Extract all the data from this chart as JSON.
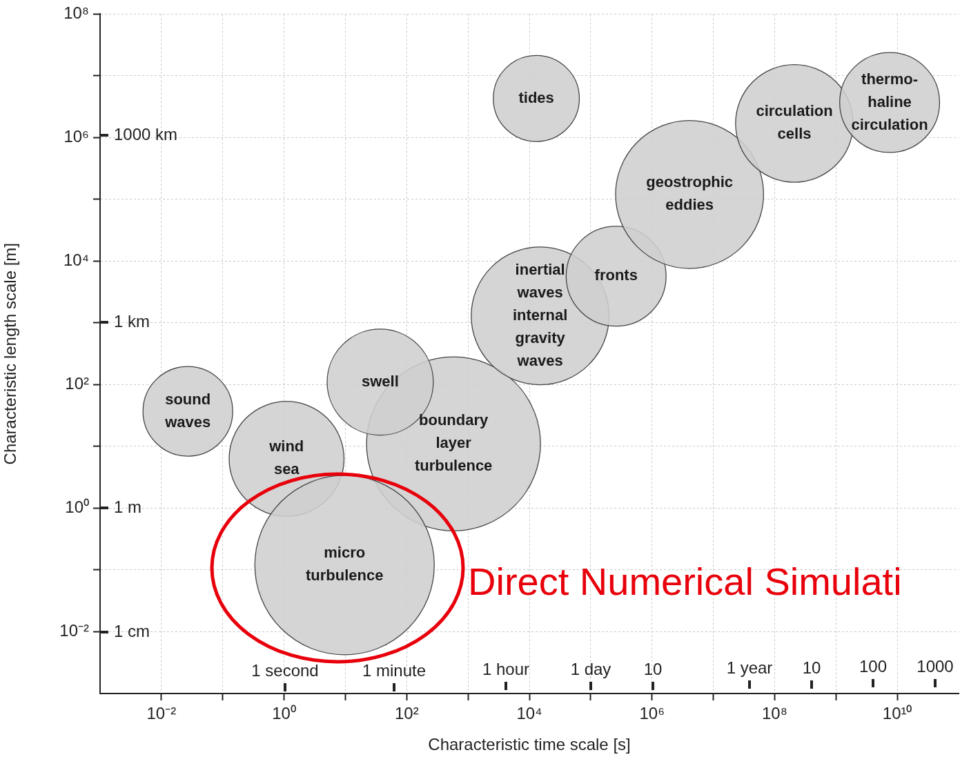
{
  "chart_data": {
    "type": "bubble",
    "xlabel": "Characteristic time scale [s]",
    "ylabel": "Characteristic length scale [m]",
    "log": "xy",
    "grid": true,
    "xlim": [
      0.001,
      100000000000.0
    ],
    "ylim": [
      0.001,
      100000000.0
    ],
    "xticks": [
      {
        "value": 0.01,
        "label": "10⁻²"
      },
      {
        "value": 0.1,
        "label": null
      },
      {
        "value": 1,
        "label": "10⁰"
      },
      {
        "value": 10,
        "label": null
      },
      {
        "value": 100,
        "label": "10²"
      },
      {
        "value": 1000,
        "label": null
      },
      {
        "value": 10000,
        "label": "10⁴"
      },
      {
        "value": 100000,
        "label": null
      },
      {
        "value": 1000000,
        "label": "10⁶"
      },
      {
        "value": 10000000,
        "label": null
      },
      {
        "value": 100000000,
        "label": "10⁸"
      },
      {
        "value": 1000000000,
        "label": null
      },
      {
        "value": 10000000000,
        "label": "10¹⁰"
      }
    ],
    "yticks": [
      {
        "value": 0.01,
        "label": "10⁻²"
      },
      {
        "value": 0.1,
        "label": null
      },
      {
        "value": 1,
        "label": "10⁰"
      },
      {
        "value": 10,
        "label": null
      },
      {
        "value": 100,
        "label": "10²"
      },
      {
        "value": 1000,
        "label": null
      },
      {
        "value": 10000,
        "label": "10⁴"
      },
      {
        "value": 100000,
        "label": null
      },
      {
        "value": 1000000,
        "label": "10⁶"
      },
      {
        "value": 10000000,
        "label": null
      },
      {
        "value": 100000000,
        "label": "10⁸"
      }
    ],
    "x": [
      13000,
      0.027,
      1.1,
      580,
      37,
      9.7,
      15000,
      260000,
      4100000,
      210000000,
      7500000000
    ],
    "series": [
      {
        "color": "#cfcfcf",
        "values": [
          4300000,
          37,
          6.3,
          11,
          110,
          0.12,
          1300,
          5700,
          120000,
          1700000,
          3700000
        ],
        "sizes": [
          0.23,
          0.25,
          0.41,
          0.94,
          0.35,
          1,
          0.59,
          0.31,
          0.68,
          0.43,
          0.31
        ]
      }
    ],
    "annotations": [
      {
        "text": "tides",
        "x": 13000,
        "y": 4300000
      },
      {
        "text": "sound\nwaves",
        "x": 0.027,
        "y": 37
      },
      {
        "text": "wind\nsea",
        "x": 1.1,
        "y": 6.3
      },
      {
        "text": "boundary\nlayer\nturbulence",
        "x": 580,
        "y": 11
      },
      {
        "text": "swell",
        "x": 37,
        "y": 110
      },
      {
        "text": "micro\nturbulence",
        "x": 9.7,
        "y": 0.12
      },
      {
        "text": "inertial\nwaves\ninternal\ngravity\nwaves",
        "x": 15000,
        "y": 1300
      },
      {
        "text": "fronts",
        "x": 260000,
        "y": 5700
      },
      {
        "text": "geostrophic\neddies",
        "x": 4100000,
        "y": 120000
      },
      {
        "text": "circulation\ncells",
        "x": 210000000,
        "y": 1700000
      },
      {
        "text": "thermo-\nhaline\ncirculation",
        "x": 7500000000,
        "y": 3700000
      },
      "1000 km",
      "1 km",
      "1 m",
      "1 cm",
      "1 second",
      "1 minute",
      "1 hour",
      "1 day",
      "10",
      "1 year",
      "10",
      "100",
      "1000",
      "Direct Numerical Simulati"
    ]
  }
}
